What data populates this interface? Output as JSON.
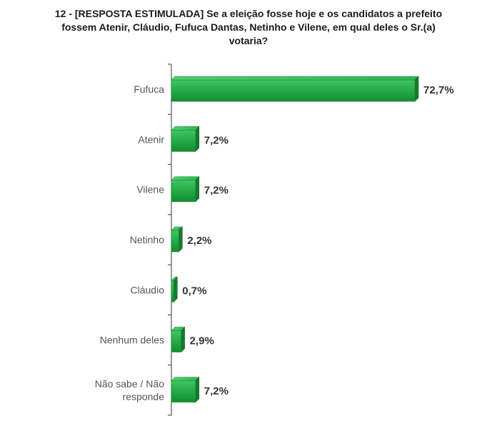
{
  "chart_data": {
    "type": "bar",
    "orientation": "horizontal",
    "title_lines": [
      "12 - [RESPOSTA ESTIMULADA] Se a eleição fosse hoje e os candidatos a prefeito",
      "fossem Atenir, Cláudio, Fufuca Dantas, Netinho e Vilene, em qual deles o Sr.(a)",
      "votaria?"
    ],
    "categories": [
      [
        "Fufuca"
      ],
      [
        "Atenir"
      ],
      [
        "Vilene"
      ],
      [
        "Netinho"
      ],
      [
        "Cláudio"
      ],
      [
        "Nenhum deles"
      ],
      [
        "Não sabe / Não",
        "responde"
      ]
    ],
    "values": [
      72.7,
      7.2,
      7.2,
      2.2,
      0.7,
      2.9,
      7.2
    ],
    "value_labels": [
      "72,7%",
      "7,2%",
      "7,2%",
      "2,2%",
      "0,7%",
      "2,9%",
      "7,2%"
    ],
    "xlim": [
      0,
      72.7
    ],
    "grid": false,
    "bar_color": "#2aa84a"
  }
}
